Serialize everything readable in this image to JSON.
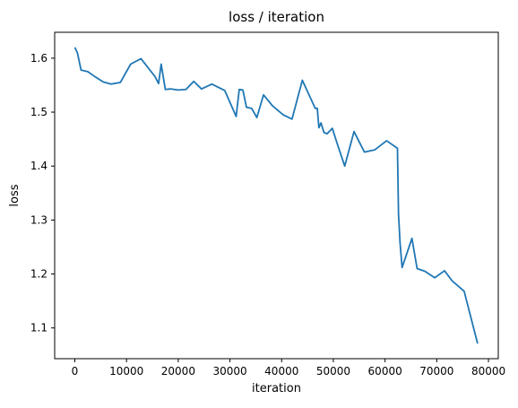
{
  "chart_data": {
    "type": "line",
    "title": "loss / iteration",
    "xlabel": "iteration",
    "ylabel": "loss",
    "xlim": [
      -3900,
      81900
    ],
    "ylim": [
      1.043,
      1.648
    ],
    "xticks": [
      0,
      10000,
      20000,
      30000,
      40000,
      50000,
      60000,
      70000,
      80000
    ],
    "xtick_labels": [
      "0",
      "10000",
      "20000",
      "30000",
      "40000",
      "50000",
      "60000",
      "70000",
      "80000"
    ],
    "yticks": [
      1.1,
      1.2,
      1.3,
      1.4,
      1.5,
      1.6
    ],
    "ytick_labels": [
      "1.1",
      "1.2",
      "1.3",
      "1.4",
      "1.5",
      "1.6"
    ],
    "grid": false,
    "series": [
      {
        "color": "#1f77b4",
        "x": [
          0,
          500,
          1200,
          2500,
          4000,
          5500,
          7000,
          8800,
          10800,
          12800,
          15500,
          16200,
          16700,
          17500,
          18500,
          20000,
          21500,
          23000,
          24500,
          26500,
          29000,
          31200,
          31800,
          32500,
          33200,
          34200,
          35200,
          36500,
          38200,
          40300,
          42000,
          44000,
          46500,
          46900,
          47200,
          47600,
          48200,
          48800,
          49800,
          50800,
          52200,
          54000,
          56000,
          58000,
          60300,
          62400,
          62600,
          62900,
          63300,
          65200,
          66200,
          67700,
          69600,
          71500,
          73000,
          75300,
          77900
        ],
        "y": [
          1.62,
          1.61,
          1.578,
          1.575,
          1.565,
          1.556,
          1.552,
          1.555,
          1.589,
          1.599,
          1.566,
          1.553,
          1.589,
          1.542,
          1.543,
          1.541,
          1.542,
          1.557,
          1.543,
          1.552,
          1.54,
          1.492,
          1.542,
          1.541,
          1.509,
          1.507,
          1.49,
          1.532,
          1.512,
          1.495,
          1.487,
          1.559,
          1.507,
          1.507,
          1.471,
          1.48,
          1.462,
          1.46,
          1.47,
          1.44,
          1.4,
          1.464,
          1.426,
          1.43,
          1.447,
          1.433,
          1.312,
          1.258,
          1.212,
          1.266,
          1.21,
          1.205,
          1.193,
          1.206,
          1.187,
          1.168,
          1.071
        ]
      }
    ]
  }
}
